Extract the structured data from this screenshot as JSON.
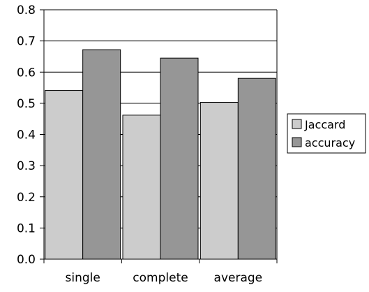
{
  "chart_data": {
    "type": "bar",
    "title": "",
    "xlabel": "",
    "ylabel": "",
    "categories": [
      "single",
      "complete",
      "average"
    ],
    "series": [
      {
        "name": "Jaccard",
        "values": [
          0.541,
          0.462,
          0.503
        ],
        "color": "#cccccc"
      },
      {
        "name": "accuracy",
        "values": [
          0.672,
          0.645,
          0.58
        ],
        "color": "#969696"
      }
    ],
    "ylim": [
      0,
      0.8
    ],
    "yticks": [
      0.0,
      0.1,
      0.2,
      0.3,
      0.4,
      0.5,
      0.6,
      0.7,
      0.8
    ],
    "ytick_labels": [
      "0.0",
      "0.1",
      "0.2",
      "0.3",
      "0.4",
      "0.5",
      "0.6",
      "0.7",
      "0.8"
    ],
    "grid": "horizontal",
    "legend_position": "right"
  }
}
